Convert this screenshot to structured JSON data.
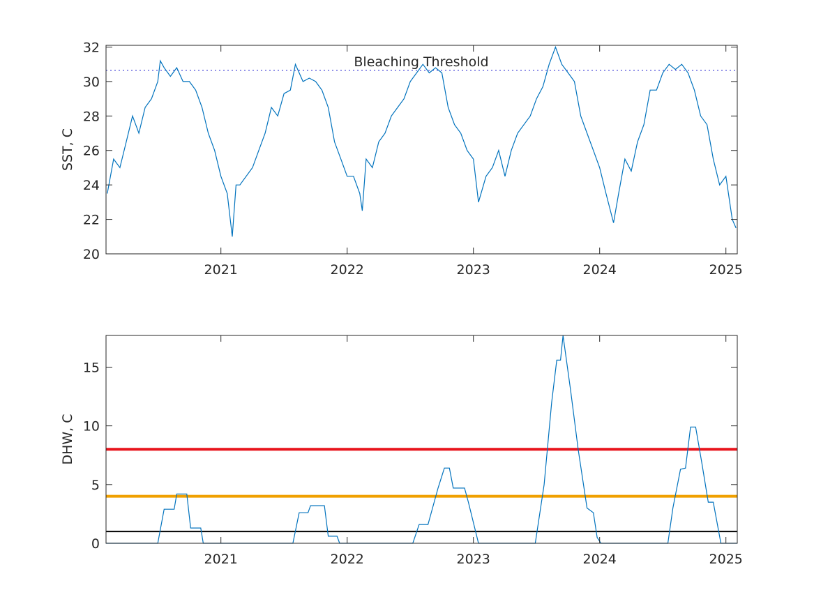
{
  "chart_data": [
    {
      "type": "line",
      "ylabel": "SST, C",
      "annotation": "Bleaching Threshold",
      "xlim": [
        2020.09,
        2025.09
      ],
      "xticks": [
        2021,
        2022,
        2023,
        2024,
        2025
      ],
      "ylim": [
        20,
        32.1
      ],
      "yticks": [
        20,
        22,
        24,
        26,
        28,
        30,
        32
      ],
      "hlines": [
        {
          "value": 30.65,
          "color": "#6a6adf",
          "style": "dotted"
        }
      ],
      "series": [
        {
          "color": "#0072bd",
          "x": [
            2020.1,
            2020.15,
            2020.2,
            2020.25,
            2020.3,
            2020.35,
            2020.4,
            2020.45,
            2020.5,
            2020.52,
            2020.55,
            2020.6,
            2020.65,
            2020.7,
            2020.75,
            2020.8,
            2020.85,
            2020.9,
            2020.95,
            2021.0,
            2021.05,
            2021.09,
            2021.12,
            2021.15,
            2021.2,
            2021.25,
            2021.3,
            2021.35,
            2021.4,
            2021.45,
            2021.5,
            2021.55,
            2021.59,
            2021.65,
            2021.7,
            2021.75,
            2021.8,
            2021.85,
            2021.9,
            2021.95,
            2022.0,
            2022.05,
            2022.1,
            2022.12,
            2022.15,
            2022.2,
            2022.25,
            2022.3,
            2022.35,
            2022.4,
            2022.45,
            2022.5,
            2022.55,
            2022.6,
            2022.65,
            2022.7,
            2022.75,
            2022.8,
            2022.85,
            2022.9,
            2022.95,
            2023.0,
            2023.04,
            2023.1,
            2023.15,
            2023.2,
            2023.25,
            2023.3,
            2023.35,
            2023.4,
            2023.45,
            2023.5,
            2023.55,
            2023.6,
            2023.65,
            2023.7,
            2023.75,
            2023.8,
            2023.85,
            2023.9,
            2023.95,
            2024.0,
            2024.05,
            2024.11,
            2024.15,
            2024.2,
            2024.25,
            2024.3,
            2024.35,
            2024.4,
            2024.45,
            2024.5,
            2024.55,
            2024.6,
            2024.65,
            2024.7,
            2024.75,
            2024.8,
            2024.85,
            2024.9,
            2024.95,
            2025.0,
            2025.05,
            2025.08
          ],
          "values": [
            23.5,
            25.5,
            25,
            26.5,
            28,
            27,
            28.5,
            29,
            30,
            31.2,
            30.8,
            30.3,
            30.8,
            30,
            30,
            29.5,
            28.5,
            27,
            26,
            24.5,
            23.5,
            21,
            24,
            24,
            24.5,
            25,
            26,
            27,
            28.5,
            28,
            29.3,
            29.5,
            31,
            30,
            30.2,
            30,
            29.5,
            28.5,
            26.5,
            25.5,
            24.5,
            24.5,
            23.5,
            22.5,
            25.5,
            25,
            26.5,
            27,
            28,
            28.5,
            29,
            30,
            30.5,
            31,
            30.5,
            30.8,
            30.5,
            28.5,
            27.5,
            27,
            26,
            25.5,
            23,
            24.5,
            25,
            26,
            24.5,
            26,
            27,
            27.5,
            28,
            29,
            29.7,
            31,
            32,
            31,
            30.5,
            30,
            28,
            27,
            26,
            25,
            23.5,
            21.8,
            23.5,
            25.5,
            24.8,
            26.5,
            27.5,
            29.5,
            29.5,
            30.5,
            31,
            30.7,
            31,
            30.5,
            29.5,
            28,
            27.5,
            25.5,
            24,
            24.5,
            22,
            21.5
          ]
        }
      ]
    },
    {
      "type": "line",
      "ylabel": "DHW, C",
      "xlim": [
        2020.09,
        2025.09
      ],
      "xticks": [
        2021,
        2022,
        2023,
        2024,
        2025
      ],
      "ylim": [
        0,
        17.7
      ],
      "yticks": [
        0,
        5,
        10,
        15
      ],
      "hlines": [
        {
          "value": 8,
          "color": "#e8141c",
          "style": "thick"
        },
        {
          "value": 4,
          "color": "#f0a000",
          "style": "thick"
        },
        {
          "value": 1,
          "color": "#000000",
          "style": "solid"
        }
      ],
      "series": [
        {
          "color": "#0072bd",
          "x": [
            2020.09,
            2020.5,
            2020.55,
            2020.63,
            2020.65,
            2020.73,
            2020.76,
            2020.84,
            2020.86,
            2021.57,
            2021.62,
            2021.69,
            2021.71,
            2021.82,
            2021.85,
            2021.92,
            2021.94,
            2022.52,
            2022.57,
            2022.64,
            2022.72,
            2022.77,
            2022.81,
            2022.84,
            2022.93,
            2022.96,
            2023.04,
            2023.49,
            2023.56,
            2023.62,
            2023.66,
            2023.69,
            2023.71,
            2023.77,
            2023.83,
            2023.9,
            2023.95,
            2023.98,
            2024.01,
            2024.54,
            2024.58,
            2024.64,
            2024.68,
            2024.72,
            2024.76,
            2024.81,
            2024.86,
            2024.9,
            2024.96,
            2025.09
          ],
          "values": [
            0,
            0,
            2.9,
            2.9,
            4.2,
            4.2,
            1.3,
            1.3,
            0,
            0,
            2.6,
            2.6,
            3.2,
            3.2,
            0.6,
            0.6,
            0,
            0,
            1.6,
            1.6,
            4.7,
            6.4,
            6.4,
            4.7,
            4.7,
            3.5,
            0,
            0,
            5,
            12,
            15.6,
            15.6,
            17.7,
            13,
            8,
            3,
            2.6,
            0.5,
            0,
            0,
            3,
            6.3,
            6.4,
            9.9,
            9.9,
            6.8,
            3.5,
            3.5,
            0,
            0
          ]
        }
      ]
    }
  ]
}
